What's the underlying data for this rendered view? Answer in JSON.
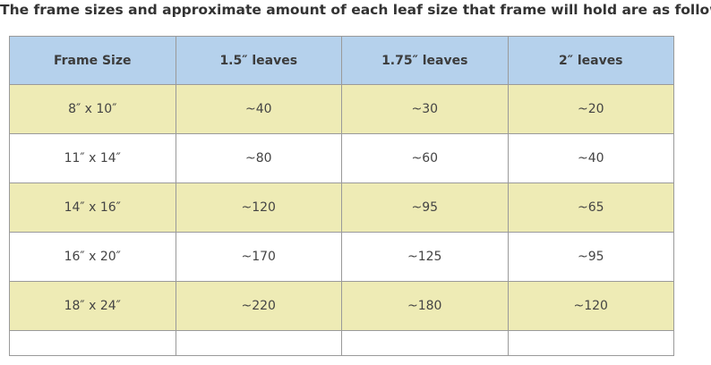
{
  "intro_text": "The frame sizes and approximate amount of each leaf size that frame will hold are as follows:",
  "colors": {
    "header_bg": "#b5d1ec",
    "band_bg": "#eeebb5",
    "row_bg": "#ffffff",
    "border": "#9a9a9a"
  },
  "table": {
    "headers": [
      "Frame Size",
      "1.5″ leaves",
      "1.75″ leaves",
      "2″ leaves"
    ],
    "rows": [
      [
        "8″ x 10″",
        "~40",
        "~30",
        "~20"
      ],
      [
        "11″ x 14″",
        "~80",
        "~60",
        "~40"
      ],
      [
        "14″ x 16″",
        "~120",
        "~95",
        "~65"
      ],
      [
        "16″ x 20″",
        "~170",
        "~125",
        "~95"
      ],
      [
        "18″ x 24″",
        "~220",
        "~180",
        "~120"
      ]
    ]
  }
}
